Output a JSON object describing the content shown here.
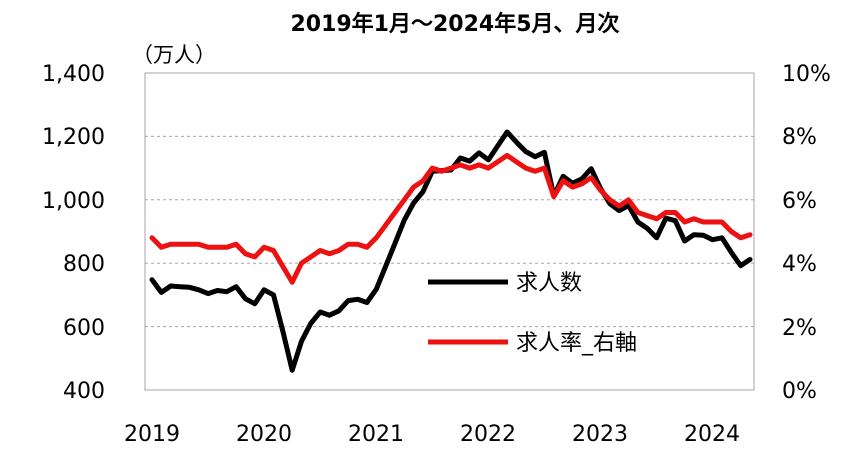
{
  "chart_data": {
    "type": "line",
    "title": "2019年1月～2024年5月、月次",
    "left_axis": {
      "unit_label": "（万人）",
      "ticks": [
        "1,400",
        "1,200",
        "1,000",
        "800",
        "600",
        "400"
      ],
      "ylim": [
        400,
        1400
      ]
    },
    "right_axis": {
      "ticks": [
        "10%",
        "8%",
        "6%",
        "4%",
        "2%",
        "0%"
      ],
      "ylim": [
        0,
        10
      ]
    },
    "x_ticks": [
      "2019",
      "2020",
      "2021",
      "2022",
      "2023",
      "2024"
    ],
    "x_start": "2019-01",
    "grid": true,
    "legend_placement": "center-right",
    "series": [
      {
        "name": "求人数",
        "axis": "left",
        "color": "#000000",
        "values": [
          748,
          708,
          728,
          726,
          724,
          716,
          704,
          714,
          710,
          726,
          688,
          672,
          716,
          700,
          586,
          462,
          554,
          610,
          646,
          636,
          650,
          682,
          686,
          676,
          718,
          790,
          862,
          936,
          990,
          1026,
          1090,
          1092,
          1094,
          1132,
          1122,
          1148,
          1126,
          1170,
          1214,
          1182,
          1152,
          1136,
          1150,
          1012,
          1074,
          1052,
          1066,
          1098,
          1036,
          988,
          966,
          982,
          930,
          910,
          880,
          942,
          934,
          870,
          890,
          888,
          874,
          880,
          834,
          792,
          812
        ]
      },
      {
        "name": "求人率_右軸",
        "axis": "right",
        "color": "#ee1111",
        "values": [
          4.8,
          4.5,
          4.6,
          4.6,
          4.6,
          4.6,
          4.5,
          4.5,
          4.5,
          4.6,
          4.3,
          4.2,
          4.5,
          4.4,
          3.9,
          3.4,
          4.0,
          4.2,
          4.4,
          4.3,
          4.4,
          4.6,
          4.6,
          4.5,
          4.8,
          5.2,
          5.6,
          6.0,
          6.4,
          6.6,
          7.0,
          6.9,
          7.0,
          7.1,
          7.0,
          7.1,
          7.0,
          7.2,
          7.4,
          7.2,
          7.0,
          6.9,
          7.0,
          6.1,
          6.6,
          6.4,
          6.5,
          6.7,
          6.3,
          6.0,
          5.8,
          6.0,
          5.6,
          5.5,
          5.4,
          5.6,
          5.6,
          5.3,
          5.4,
          5.3,
          5.3,
          5.3,
          5.0,
          4.8,
          4.9
        ]
      }
    ]
  }
}
